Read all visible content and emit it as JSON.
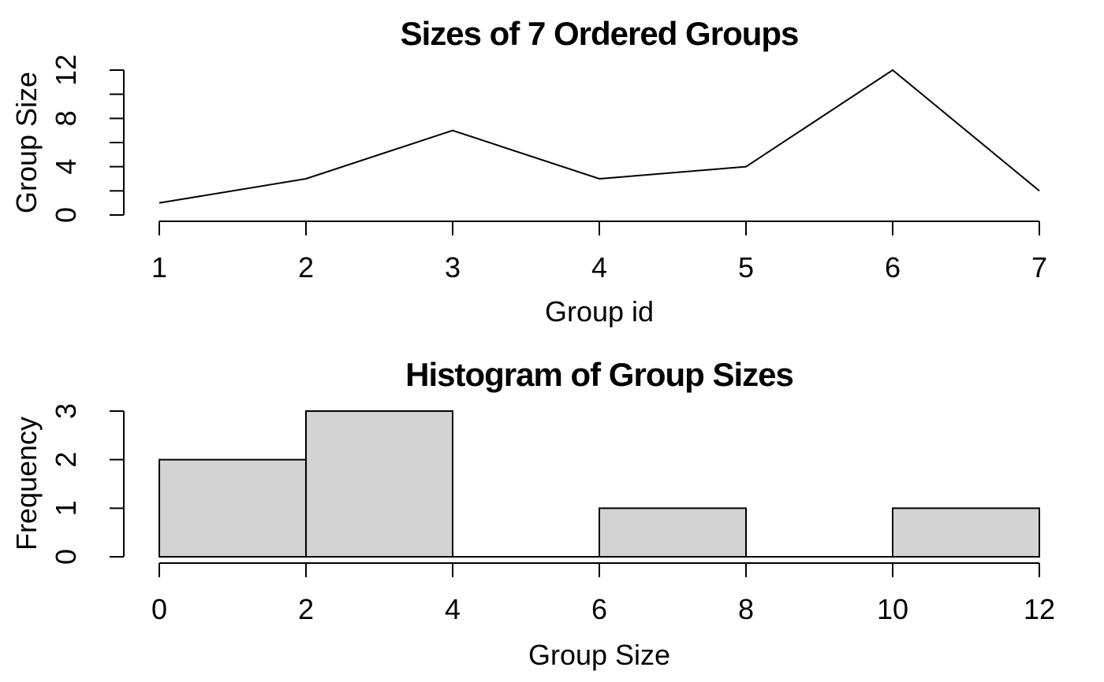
{
  "figure": {
    "background": "#ffffff",
    "foreground": "#000000"
  },
  "chart_data": [
    {
      "type": "line",
      "title": "Sizes of 7 Ordered Groups",
      "xlabel": "Group id",
      "ylabel": "Group Size",
      "x": [
        1,
        2,
        3,
        4,
        5,
        6,
        7
      ],
      "y": [
        1,
        3,
        7,
        3,
        4,
        12,
        2
      ],
      "xlim": [
        1,
        7
      ],
      "ylim": [
        0,
        12
      ],
      "xticks": [
        1,
        2,
        3,
        4,
        5,
        6,
        7
      ],
      "xtick_labels": [
        "1",
        "2",
        "3",
        "4",
        "5",
        "6",
        "7"
      ],
      "yticks": [
        0,
        2,
        4,
        6,
        8,
        10,
        12
      ],
      "ytick_labels": [
        "0",
        "",
        "4",
        "",
        "8",
        "",
        "12"
      ],
      "line_color": "#000000",
      "grid": false,
      "legend_position": "none"
    },
    {
      "type": "bar",
      "subtype": "histogram",
      "title": "Histogram of Group Sizes",
      "xlabel": "Group Size",
      "ylabel": "Frequency",
      "bin_edges": [
        0,
        2,
        4,
        6,
        8,
        10,
        12
      ],
      "frequencies": [
        2,
        3,
        0,
        1,
        0,
        1
      ],
      "xlim": [
        0,
        12
      ],
      "ylim": [
        0,
        3
      ],
      "xticks": [
        0,
        2,
        4,
        6,
        8,
        10,
        12
      ],
      "xtick_labels": [
        "0",
        "2",
        "4",
        "6",
        "8",
        "10",
        "12"
      ],
      "yticks": [
        0,
        1,
        2,
        3
      ],
      "ytick_labels": [
        "0",
        "1",
        "2",
        "3"
      ],
      "bar_fill": "#d3d3d3",
      "bar_stroke": "#000000",
      "grid": false,
      "legend_position": "none"
    }
  ]
}
